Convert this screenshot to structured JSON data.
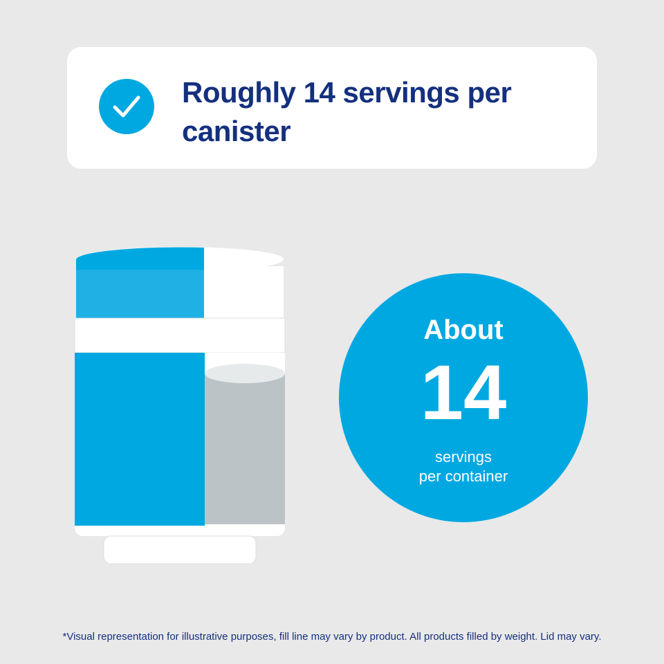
{
  "header": {
    "title": "Roughly 14 servings per canister"
  },
  "badge": {
    "top": "About",
    "number": "14",
    "line1": "servings",
    "line2": "per container"
  },
  "footnote": "*Visual representation for illustrative purposes, fill line may vary by product. All products filled by weight. Lid may vary."
}
